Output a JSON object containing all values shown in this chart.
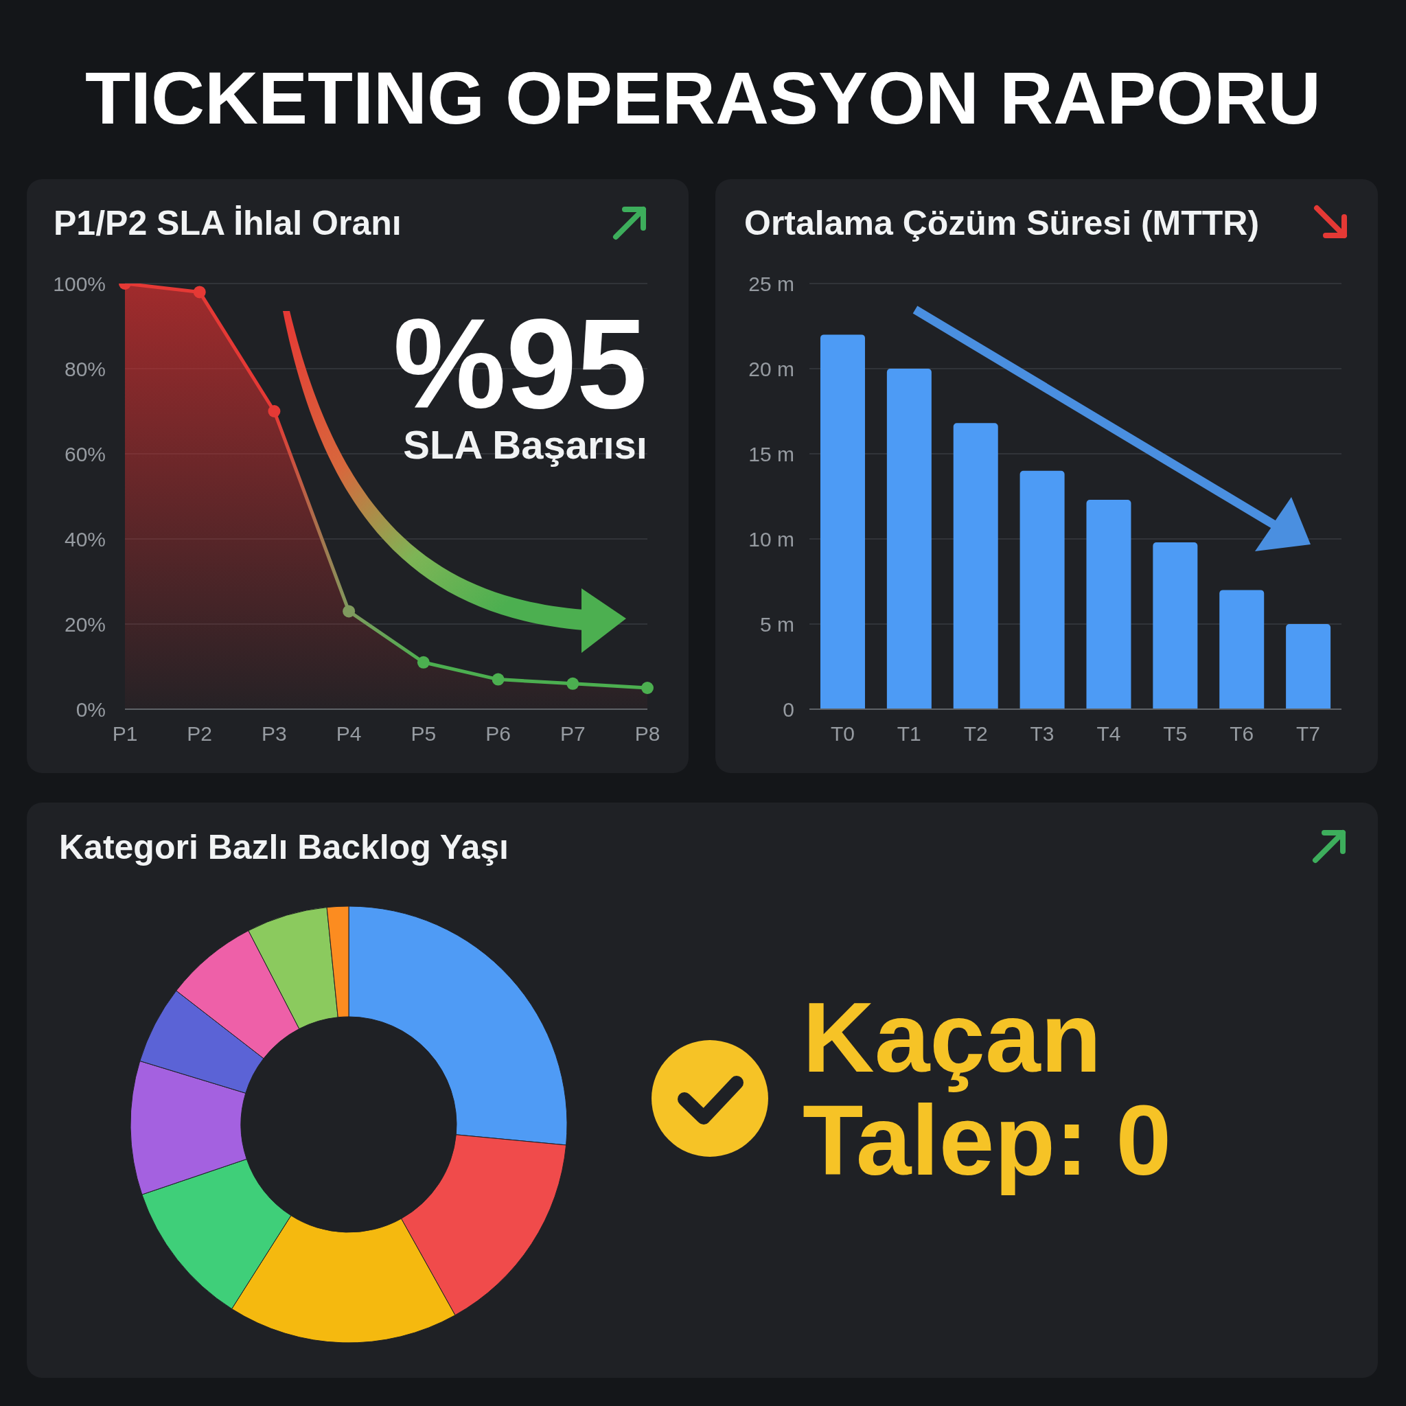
{
  "chart_data": [
    {
      "type": "area",
      "title": "P1/P2 SLA İhlal Oranı",
      "categories": [
        "P1",
        "P2",
        "P3",
        "P4",
        "P5",
        "P6",
        "P7",
        "P8"
      ],
      "values": [
        100,
        98,
        70,
        23,
        11,
        7,
        6,
        5
      ],
      "color": "#d32f2f",
      "colors": [
        "#e53935",
        "#e53935",
        "#e53935",
        "#7f9a5e",
        "#4caf50",
        "#4caf50",
        "#4caf50",
        "#4caf50"
      ],
      "ylim": [
        0,
        100
      ],
      "yticks": [
        {
          "value": 0,
          "label": "0%"
        },
        {
          "value": 20,
          "label": "20%"
        },
        {
          "value": 40,
          "label": "40%"
        },
        {
          "value": 60,
          "label": "60%"
        },
        {
          "value": 80,
          "label": "80%"
        },
        {
          "value": 100,
          "label": "100%"
        }
      ],
      "grid": "y",
      "marker": "circle",
      "annotations": [
        "TICKETING OPERASYON RAPORU",
        "%95",
        "SLA Başarısı"
      ]
    },
    {
      "type": "bar",
      "title": "Ortalama Çözüm Süresi (MTTR)",
      "categories": [
        "T0",
        "T1",
        "T2",
        "T3",
        "T4",
        "T5",
        "T6",
        "T7"
      ],
      "values": [
        22,
        20,
        16.8,
        14,
        12.3,
        9.8,
        7,
        5
      ],
      "color": "#4d9bf5",
      "ylim": [
        0,
        25
      ],
      "yticks": [
        0,
        {
          "value": 5,
          "label": "5 m"
        },
        {
          "value": 10,
          "label": "10 m"
        },
        {
          "value": 15,
          "label": "15 m"
        },
        {
          "value": 20,
          "label": "20 m"
        },
        {
          "value": 25,
          "label": "25 m"
        }
      ],
      "grid": "y"
    },
    {
      "type": "donut",
      "title": "Kategori Bazlı Backlog Yaşı",
      "categories": [
        null,
        null,
        null,
        null,
        null,
        null,
        null,
        null,
        null
      ],
      "values": [
        26.5,
        15.4,
        17.1,
        10.8,
        9.9,
        5.8,
        6.9,
        6.0,
        1.6
      ],
      "colors": [
        "#4f9bf5",
        "#f04b4b",
        "#f5b90f",
        "#3fcf79",
        "#a461e0",
        "#5b63d6",
        "#ee60a8",
        "#8bca5e",
        "#fc8c20"
      ],
      "annotations": [
        "Kaçan Talep: 0"
      ]
    }
  ]
}
